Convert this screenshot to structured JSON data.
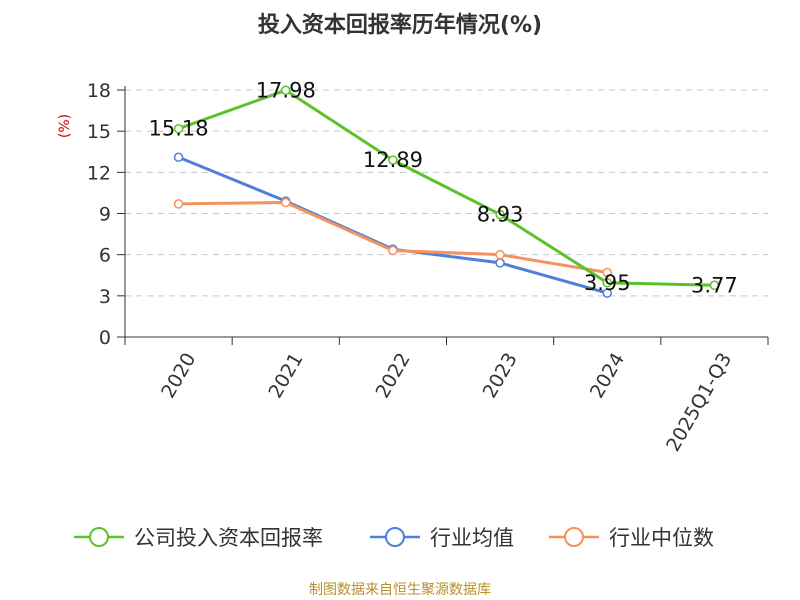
{
  "chart_data": {
    "type": "line",
    "title": "投入资本回报率历年情况(%)",
    "ylabel": "(%)",
    "xlabel": "",
    "categories": [
      "2020",
      "2021",
      "2022",
      "2023",
      "2024",
      "2025Q1-Q3"
    ],
    "ylim": [
      0,
      18
    ],
    "yticks": [
      0,
      3,
      6,
      9,
      12,
      15,
      18
    ],
    "grid": true,
    "legend_position": "bottom",
    "series": [
      {
        "name": "公司投入资本回报率",
        "color": "#5cc22b",
        "values": [
          15.18,
          17.98,
          12.89,
          8.93,
          3.95,
          3.77
        ],
        "labels": [
          "15.18",
          "17.98",
          "12.89",
          "8.93",
          "3.95",
          "3.77"
        ]
      },
      {
        "name": "行业均值",
        "color": "#4f7fd9",
        "values": [
          13.1,
          9.9,
          6.4,
          5.4,
          3.2,
          null
        ]
      },
      {
        "name": "行业中位数",
        "color": "#f5925e",
        "values": [
          9.7,
          9.8,
          6.3,
          6.0,
          4.7,
          null
        ]
      }
    ]
  },
  "source": "制图数据来自恒生聚源数据库"
}
